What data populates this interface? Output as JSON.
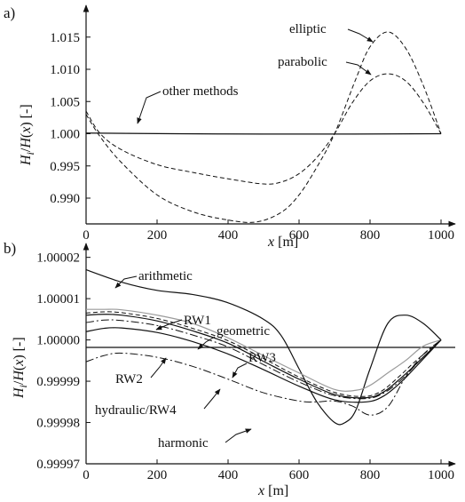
{
  "panels": {
    "a": {
      "label": "a)"
    },
    "b": {
      "label": "b)"
    }
  },
  "chart_data": [
    {
      "type": "line",
      "panel": "a",
      "xlabel": "x [m]",
      "ylabel": "Hi/H(x) [-]",
      "xlim": [
        0,
        1000
      ],
      "ylim": [
        0.986,
        1.018
      ],
      "xticks": [
        "0",
        "200",
        "400",
        "600",
        "800",
        "1000"
      ],
      "yticks": [
        "0.990",
        "0.995",
        "1.000",
        "1.005",
        "1.010",
        "1.015"
      ],
      "series": [
        {
          "name": "elliptic",
          "dash": "dashed",
          "x": [
            0,
            40,
            100,
            200,
            300,
            400,
            480,
            550,
            600,
            650,
            700,
            760,
            800,
            850,
            900,
            950,
            1000
          ],
          "y": [
            1.003,
            0.9995,
            0.9955,
            0.9905,
            0.9879,
            0.9866,
            0.9863,
            0.9878,
            0.9905,
            0.9948,
            1.0,
            1.0085,
            1.0135,
            1.0158,
            1.0133,
            1.0075,
            1.0
          ]
        },
        {
          "name": "parabolic",
          "dash": "dashed",
          "x": [
            0,
            40,
            100,
            200,
            300,
            400,
            500,
            550,
            600,
            650,
            700,
            750,
            800,
            850,
            900,
            950,
            1000
          ],
          "y": [
            1.0035,
            1.0,
            0.9975,
            0.9952,
            0.994,
            0.993,
            0.9922,
            0.9925,
            0.9938,
            0.9963,
            1.0,
            1.0048,
            1.0082,
            1.0093,
            1.0082,
            1.0048,
            1.0
          ]
        },
        {
          "name": "other methods",
          "dash": "solid",
          "x": [
            0,
            250,
            500,
            750,
            1000
          ],
          "y": [
            1.0001,
            1.0,
            0.99995,
            0.99995,
            1.0
          ]
        }
      ],
      "annotations": [
        "elliptic",
        "parabolic",
        "other methods"
      ]
    },
    {
      "type": "line",
      "panel": "b",
      "xlabel": "x [m]",
      "ylabel": "Hi/H(x) [-]",
      "xlim": [
        0,
        1000
      ],
      "ylim": [
        0.99997,
        1.000021
      ],
      "xticks": [
        "0",
        "200",
        "400",
        "600",
        "800",
        "1000"
      ],
      "yticks": [
        "0.99997",
        "0.99998",
        "0.99999",
        "1.00000",
        "1.00001",
        "1.00002"
      ],
      "series": [
        {
          "name": "arithmetic",
          "dash": "solid",
          "x": [
            0,
            100,
            200,
            300,
            400,
            500,
            550,
            600,
            650,
            700,
            730,
            760,
            800,
            850,
            900,
            950,
            1000
          ],
          "y": [
            1.000017,
            1.000014,
            1.000012,
            1.000011,
            1.000009,
            1.000005,
            1.000001,
            0.999993,
            0.999985,
            0.99998,
            0.99998,
            0.999983,
            0.999993,
            1.000004,
            1.000006,
            1.000004,
            1.0
          ]
        },
        {
          "name": "RW1",
          "dash": "solid-gray",
          "x": [
            0,
            50,
            100,
            200,
            300,
            400,
            500,
            600,
            700,
            760,
            800,
            850,
            900,
            950,
            1000
          ],
          "y": [
            1.0000074,
            1.0000074,
            1.0000073,
            1.000006,
            1.000004,
            1.0000005,
            0.9999962,
            0.999992,
            0.999988,
            0.9999878,
            0.999989,
            0.999992,
            0.999995,
            0.9999985,
            1.0
          ]
        },
        {
          "name": "geometric",
          "dash": "dashed",
          "x": [
            0,
            50,
            100,
            200,
            300,
            400,
            500,
            600,
            700,
            780,
            830,
            880,
            930,
            1000
          ],
          "y": [
            1.0000065,
            1.0000068,
            1.0000066,
            1.0000052,
            1.0000028,
            0.9999998,
            0.9999955,
            0.999991,
            0.9999873,
            0.9999863,
            0.9999875,
            0.999991,
            0.999995,
            1.0
          ]
        },
        {
          "name": "RW3",
          "dash": "solid",
          "x": [
            0,
            50,
            100,
            200,
            300,
            400,
            500,
            600,
            700,
            790,
            840,
            890,
            940,
            1000
          ],
          "y": [
            1.000006,
            1.0000062,
            1.000006,
            1.0000046,
            1.0000022,
            0.9999992,
            0.9999948,
            0.9999905,
            0.9999868,
            0.999986,
            0.9999875,
            0.999991,
            0.999995,
            1.0
          ]
        },
        {
          "name": "RW2",
          "dash": "dash-dot",
          "x": [
            0,
            50,
            100,
            200,
            300,
            400,
            500,
            600,
            700,
            790,
            840,
            890,
            940,
            1000
          ],
          "y": [
            1.0000042,
            1.0000048,
            1.0000047,
            1.0000035,
            1.0000012,
            0.9999983,
            0.999994,
            0.9999898,
            0.9999865,
            0.9999858,
            0.9999872,
            0.9999905,
            0.999995,
            1.0
          ]
        },
        {
          "name": "hydraulic/RW4",
          "dash": "solid",
          "x": [
            0,
            50,
            100,
            200,
            300,
            400,
            500,
            600,
            700,
            790,
            840,
            890,
            940,
            1000
          ],
          "y": [
            1.000002,
            1.0000028,
            1.0000029,
            1.0000018,
            0.9999996,
            0.9999966,
            0.9999928,
            0.9999888,
            0.9999855,
            0.999985,
            0.9999865,
            0.99999,
            0.9999945,
            1.0
          ]
        },
        {
          "name": "harmonic",
          "dash": "dash-dot",
          "x": [
            0,
            50,
            100,
            200,
            300,
            400,
            500,
            600,
            650,
            700,
            750,
            800,
            850,
            900,
            950,
            1000
          ],
          "y": [
            0.9999947,
            0.9999962,
            0.9999968,
            0.9999958,
            0.9999936,
            0.9999905,
            0.9999872,
            0.9999852,
            0.999985,
            0.9999852,
            0.999984,
            0.9999818,
            0.9999838,
            0.999991,
            0.9999965,
            1.0
          ]
        }
      ],
      "annotations": [
        "arithmetic",
        "RW1",
        "geometric",
        "RW3",
        "RW2",
        "hydraulic/RW4",
        "harmonic"
      ]
    }
  ]
}
